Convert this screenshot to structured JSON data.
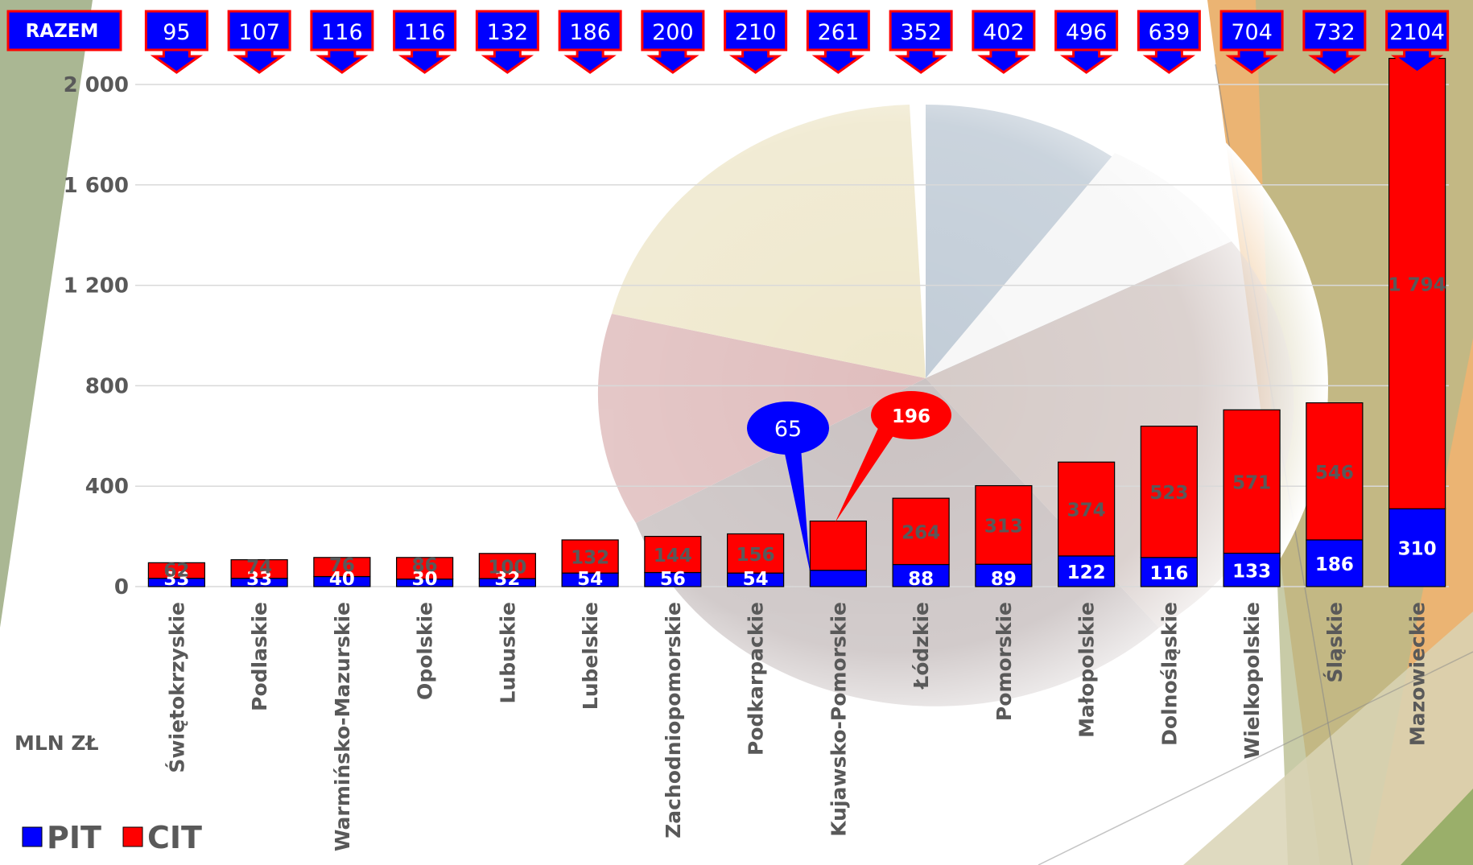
{
  "chart_data": {
    "type": "bar",
    "stacked": true,
    "unit_label": "MLN ZŁ",
    "totals_label": "RAZEM",
    "categories": [
      "Świętokrzyskie",
      "Podlaskie",
      "Warmińsko-Mazurskie",
      "Opolskie",
      "Lubuskie",
      "Lubelskie",
      "Zachodniopomorskie",
      "Podkarpackie",
      "Kujawsko-Pomorskie",
      "Łódzkie",
      "Pomorskie",
      "Małopolskie",
      "Dolnośląskie",
      "Wielkopolskie",
      "Śląskie",
      "Mazowieckie"
    ],
    "series": [
      {
        "name": "PIT",
        "color": "#0000ff",
        "values": [
          33,
          33,
          40,
          30,
          32,
          54,
          56,
          54,
          65,
          88,
          89,
          122,
          116,
          133,
          186,
          310
        ]
      },
      {
        "name": "CIT",
        "color": "#ff0000",
        "values": [
          62,
          74,
          76,
          86,
          100,
          132,
          144,
          156,
          196,
          264,
          313,
          374,
          523,
          571,
          546,
          1794
        ]
      }
    ],
    "value_labels": {
      "PIT": [
        "33",
        "33",
        "40",
        "30",
        "32",
        "54",
        "56",
        "54",
        "",
        "88",
        "89",
        "122",
        "116",
        "133",
        "186",
        "310"
      ],
      "CIT": [
        "62",
        "74",
        "76",
        "86",
        "100",
        "132",
        "144",
        "156",
        "",
        "264",
        "313",
        "374",
        "523",
        "571",
        "546",
        "1 794"
      ]
    },
    "totals": [
      "95",
      "107",
      "116",
      "116",
      "132",
      "186",
      "200",
      "210",
      "261",
      "352",
      "402",
      "496",
      "639",
      "704",
      "732",
      "2104"
    ],
    "callouts": [
      {
        "category": "Kujawsko-Pomorskie",
        "series": "PIT",
        "text": "65"
      },
      {
        "category": "Kujawsko-Pomorskie",
        "series": "CIT",
        "text": "196"
      }
    ],
    "ylim": [
      0,
      2150
    ],
    "yticks": [
      0,
      400,
      800,
      1200,
      1600,
      2000
    ],
    "ytick_labels": [
      "0",
      "400",
      "800",
      "1 200",
      "1 600",
      "2 000"
    ],
    "grid": true,
    "legend_position": "bottom-left"
  }
}
